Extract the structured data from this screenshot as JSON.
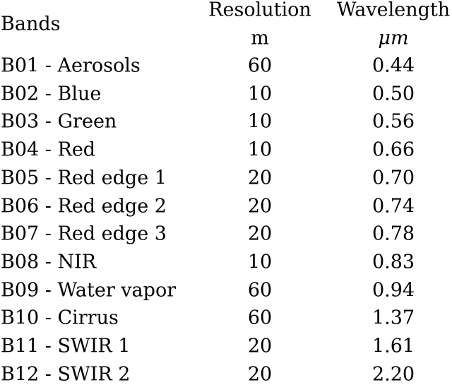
{
  "table": {
    "headers": {
      "band": "Bands",
      "resolution": "Resolution",
      "resolution_unit": "m",
      "wavelength": "Wavelength",
      "wavelength_unit": "μm"
    },
    "rows": [
      {
        "band": "B01 - Aerosols",
        "resolution": "60",
        "wavelength": "0.44"
      },
      {
        "band": "B02 - Blue",
        "resolution": "10",
        "wavelength": "0.50"
      },
      {
        "band": "B03 - Green",
        "resolution": "10",
        "wavelength": "0.56"
      },
      {
        "band": "B04 - Red",
        "resolution": "10",
        "wavelength": "0.66"
      },
      {
        "band": "B05 - Red edge 1",
        "resolution": "20",
        "wavelength": "0.70"
      },
      {
        "band": "B06 - Red edge 2",
        "resolution": "20",
        "wavelength": "0.74"
      },
      {
        "band": "B07 - Red edge 3",
        "resolution": "20",
        "wavelength": "0.78"
      },
      {
        "band": "B08 - NIR",
        "resolution": "10",
        "wavelength": "0.83"
      },
      {
        "band": "B09 - Water vapor",
        "resolution": "60",
        "wavelength": "0.94"
      },
      {
        "band": "B10 - Cirrus",
        "resolution": "60",
        "wavelength": "1.37"
      },
      {
        "band": "B11 - SWIR 1",
        "resolution": "20",
        "wavelength": "1.61"
      },
      {
        "band": "B12 - SWIR 2",
        "resolution": "20",
        "wavelength": "2.20"
      }
    ]
  }
}
